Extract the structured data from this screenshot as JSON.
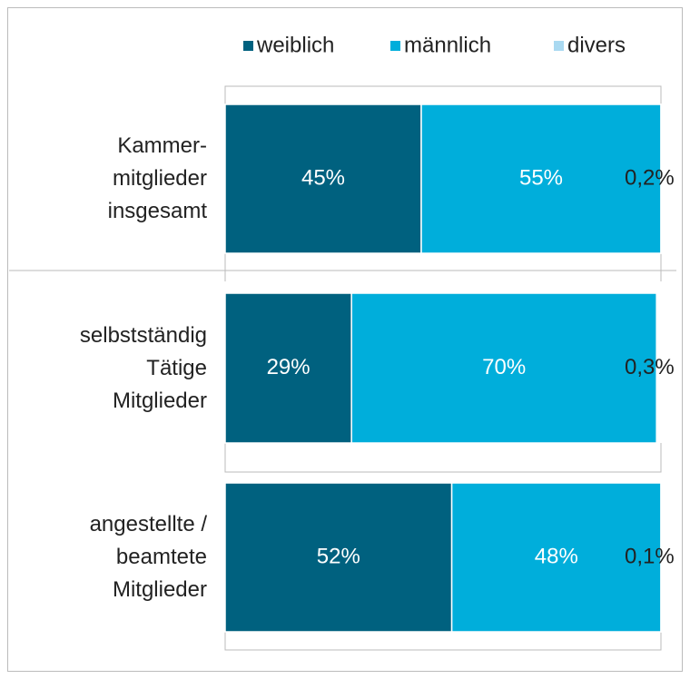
{
  "chart_data": {
    "type": "stacked-bar-horizontal",
    "categories": [
      "Kammer-\nmitglieder\ninsgesamt",
      "selbstständig\nTätige\nMitglieder",
      "angestellte /\nbeamtete\nMitglieder"
    ],
    "xlim": [
      0,
      100
    ],
    "legend": "top",
    "series": [
      {
        "name": "weiblich",
        "color": "#00617f",
        "values": [
          45,
          29,
          52
        ],
        "value_labels": [
          "45%",
          "29%",
          "52%"
        ]
      },
      {
        "name": "männlich",
        "color": "#00aedb",
        "values": [
          55,
          70,
          48
        ],
        "value_labels": [
          "55%",
          "70%",
          "48%"
        ]
      },
      {
        "name": "divers",
        "color": "#a9d9f1",
        "values": [
          0.2,
          0.3,
          0.1
        ],
        "value_labels": [
          "0,2%",
          "0,3%",
          "0,1%"
        ]
      }
    ]
  }
}
